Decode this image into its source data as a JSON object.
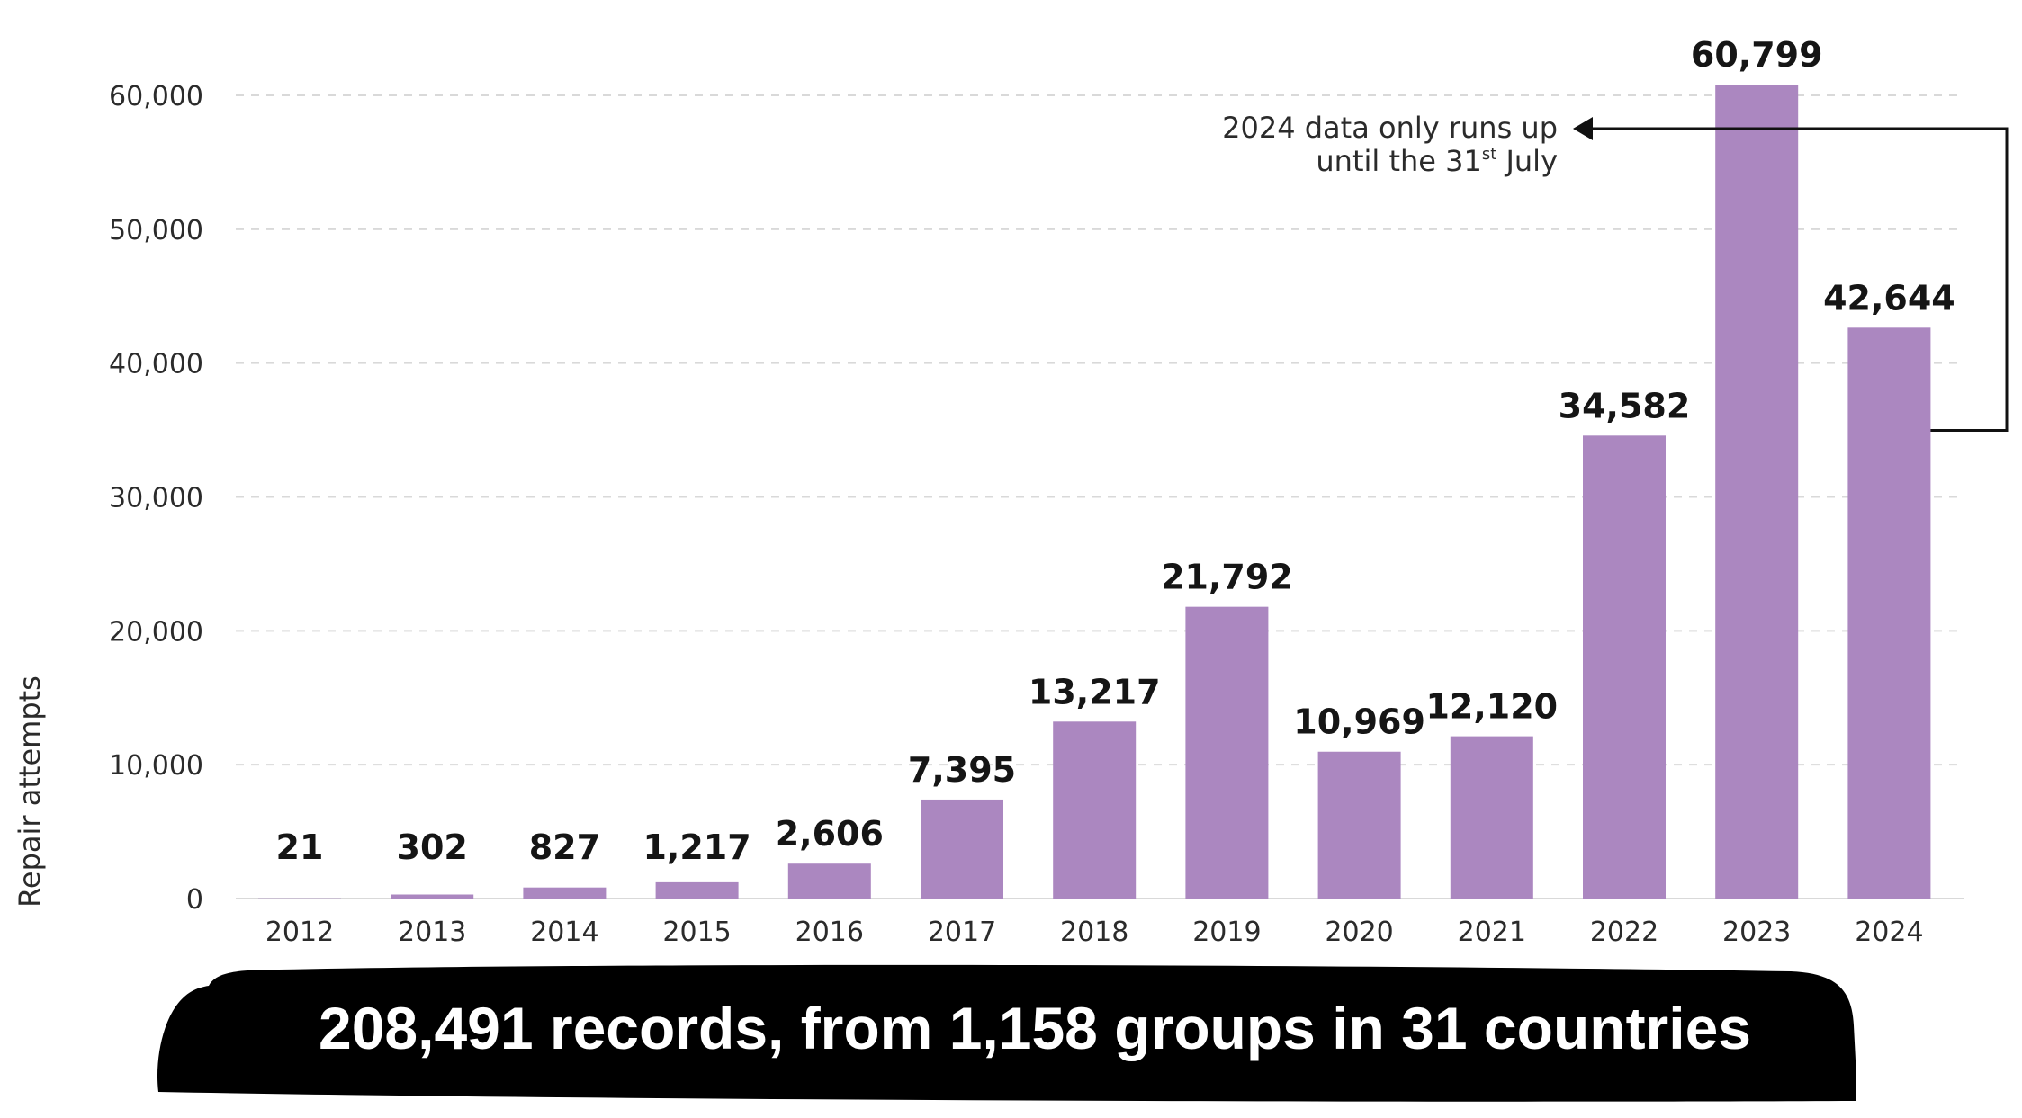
{
  "chart_data": {
    "type": "bar",
    "categories": [
      "2012",
      "2013",
      "2014",
      "2015",
      "2016",
      "2017",
      "2018",
      "2019",
      "2020",
      "2021",
      "2022",
      "2023",
      "2024"
    ],
    "values": [
      21,
      302,
      827,
      1217,
      2606,
      7395,
      13217,
      21792,
      10969,
      12120,
      34582,
      60799,
      42644
    ],
    "value_labels": [
      "21",
      "302",
      "827",
      "1,217",
      "2,606",
      "7,395",
      "13,217",
      "21,792",
      "10,969",
      "12,120",
      "34,582",
      "60,799",
      "42,644"
    ],
    "ylabel": "Repair attempts",
    "ylim": [
      0,
      60000
    ],
    "yticks": [
      0,
      10000,
      20000,
      30000,
      40000,
      50000,
      60000
    ],
    "ytick_labels": [
      "0",
      "10,000",
      "20,000",
      "30,000",
      "40,000",
      "50,000",
      "60,000"
    ],
    "grid": true,
    "bar_color": "#ab87c0",
    "annotation": {
      "line1": "2024 data only runs up",
      "line2_prefix": "until the 31",
      "line2_sup": "st",
      "line2_suffix": " July",
      "target_category": "2024"
    }
  },
  "banner": {
    "text": "208,491 records, from 1,158 groups in 31 countries"
  }
}
